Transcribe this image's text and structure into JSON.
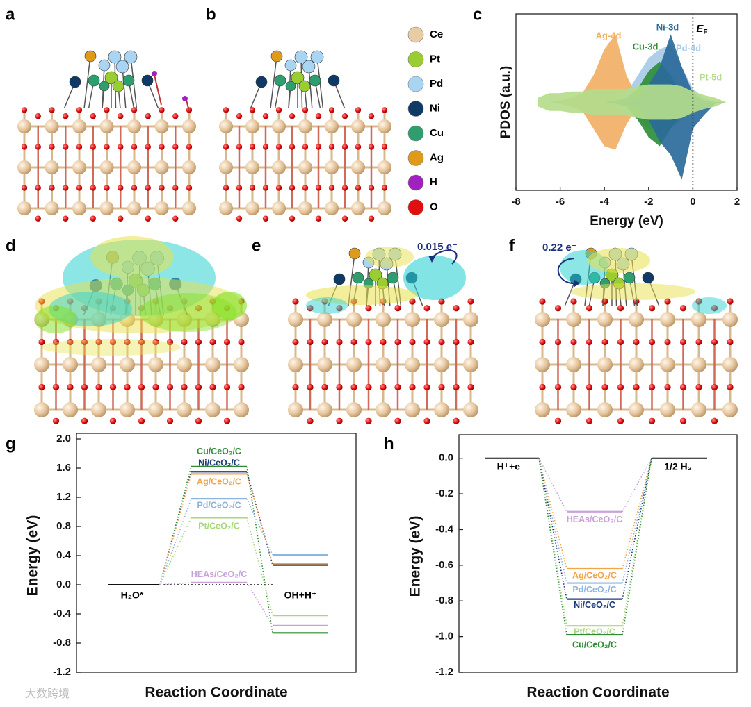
{
  "panel_labels": [
    "a",
    "b",
    "c",
    "d",
    "e",
    "f",
    "g",
    "h"
  ],
  "atom_legend": [
    {
      "name": "Ce",
      "color": "#e9cba4"
    },
    {
      "name": "Pt",
      "color": "#9acd32"
    },
    {
      "name": "Pd",
      "color": "#a9d5f2"
    },
    {
      "name": "Ni",
      "color": "#0f3a66"
    },
    {
      "name": "Cu",
      "color": "#2e9e6e"
    },
    {
      "name": "Ag",
      "color": "#e09a1a"
    },
    {
      "name": "H",
      "color": "#a020c0"
    },
    {
      "name": "O",
      "color": "#e01010"
    }
  ],
  "charge_transfer": [
    "0.015 e⁻",
    "0.22 e⁻"
  ],
  "watermark": "大数跨境",
  "chart_data": [
    {
      "type": "area",
      "xlabel": "Energy (eV)",
      "ylabel": "PDOS (a.u.)",
      "xlim": [
        -8,
        2
      ],
      "xticks": [
        -8,
        -6,
        -4,
        -2,
        0,
        2
      ],
      "ylim": [
        -1,
        1
      ],
      "fermi_level": 0,
      "fermi_label": {
        "text": "E",
        "sub": "F"
      },
      "x": [
        -7,
        -6.5,
        -6,
        -5.5,
        -5,
        -4.5,
        -4,
        -3.5,
        -3,
        -2.5,
        -2,
        -1.5,
        -1,
        -0.5,
        0,
        0.5,
        1,
        1.5
      ],
      "series": [
        {
          "name": "Ag-4d",
          "color": "#f2b066",
          "values": [
            0,
            0,
            0.02,
            0.05,
            0.1,
            0.3,
            0.6,
            0.77,
            0.3,
            0.05,
            0.02,
            0,
            0,
            0,
            0,
            0,
            0,
            0
          ],
          "values_down": [
            0,
            0,
            -0.02,
            -0.05,
            -0.1,
            -0.3,
            -0.5,
            -0.54,
            -0.25,
            -0.05,
            -0.02,
            0,
            0,
            0,
            0,
            0,
            0,
            0
          ]
        },
        {
          "name": "Pd-4d",
          "color": "#a8cbe6",
          "values": [
            0,
            0,
            0,
            0,
            0,
            0,
            0,
            0.02,
            0.1,
            0.3,
            0.5,
            0.6,
            0.65,
            0.4,
            0.15,
            0.05,
            0,
            0
          ],
          "values_down": [
            0,
            0,
            0,
            0,
            0,
            0,
            0,
            -0.02,
            -0.1,
            -0.2,
            -0.3,
            -0.35,
            -0.3,
            -0.2,
            -0.1,
            -0.02,
            0,
            0
          ]
        },
        {
          "name": "Cu-3d",
          "color": "#2f8f3a",
          "values": [
            0,
            0,
            0,
            0,
            0,
            0,
            0,
            0.02,
            0.05,
            0.15,
            0.35,
            0.46,
            0.3,
            0.1,
            0.05,
            0,
            0,
            0
          ],
          "values_down": [
            0,
            0,
            0,
            0,
            0,
            0,
            0,
            -0.02,
            -0.05,
            -0.2,
            -0.4,
            -0.5,
            -0.3,
            -0.15,
            -0.05,
            0,
            0,
            0
          ]
        },
        {
          "name": "Ni-3d",
          "color": "#2b6a9a",
          "values": [
            0,
            0,
            0,
            0,
            0,
            0,
            0,
            0,
            0.02,
            0.05,
            0.2,
            0.4,
            0.77,
            0.4,
            0.1,
            0.02,
            0,
            0
          ],
          "values_down": [
            0,
            0,
            0,
            0,
            0,
            0,
            0,
            0,
            -0.02,
            -0.05,
            -0.2,
            -0.45,
            -0.6,
            -0.88,
            -0.3,
            -0.15,
            -0.02,
            0
          ]
        },
        {
          "name": "Pt-5d",
          "color": "#b4dc8c",
          "values": [
            0.05,
            0.1,
            0.1,
            0.12,
            0.12,
            0.15,
            0.15,
            0.15,
            0.15,
            0.18,
            0.2,
            0.2,
            0.2,
            0.18,
            0.12,
            0.08,
            0.05,
            0
          ],
          "values_down": [
            -0.05,
            -0.1,
            -0.1,
            -0.12,
            -0.12,
            -0.15,
            -0.15,
            -0.15,
            -0.15,
            -0.18,
            -0.2,
            -0.2,
            -0.2,
            -0.18,
            -0.12,
            -0.08,
            -0.05,
            0
          ]
        }
      ]
    },
    {
      "type": "energy_diagram",
      "xlabel": "Reaction Coordinate",
      "ylabel": "Energy (eV)",
      "ylim": [
        -1.2,
        2.0
      ],
      "yticks": [
        -1.2,
        -0.8,
        -0.4,
        {
          "value": 0,
          "label": "0.0"
        },
        0.4,
        0.8,
        1.2,
        1.6,
        {
          "value": 2,
          "label": "2.0"
        }
      ],
      "start": {
        "label": "H₂O*",
        "value": 0
      },
      "end_label": "OH+H⁺",
      "series": [
        {
          "name": "Cu/CeO₂/C",
          "color": "#2f8a34",
          "values": [
            1.62,
            -0.66
          ]
        },
        {
          "name": "Ni/CeO₂/C",
          "color": "#1c3a78",
          "values": [
            1.55,
            0.27
          ]
        },
        {
          "name": "Ag/CeO₂/C",
          "color": "#f0a54a",
          "values": [
            1.52,
            0.29
          ]
        },
        {
          "name": "Pd/CeO₂/C",
          "color": "#8fb4e0",
          "values": [
            1.18,
            0.41
          ]
        },
        {
          "name": "Pt/CeO₂/C",
          "color": "#a8d87a",
          "values": [
            0.92,
            -0.42
          ]
        },
        {
          "name": "HEAs/CeO₂/C",
          "color": "#c9a0d8",
          "values": [
            0.03,
            -0.56
          ]
        }
      ]
    },
    {
      "type": "energy_diagram",
      "xlabel": "Reaction Coordinate",
      "ylabel": "Energy (eV)",
      "ylim": [
        -1.2,
        0.1
      ],
      "yticks": [
        -1.2,
        {
          "value": -1,
          "label": "-1.0"
        },
        -0.8,
        -0.6,
        -0.4,
        -0.2,
        {
          "value": 0,
          "label": "0.0"
        }
      ],
      "start": {
        "label": "H⁺+e⁻",
        "value": 0
      },
      "end": {
        "label": "1/2 H₂",
        "value": 0
      },
      "series": [
        {
          "name": "HEAs/CeO₂/C",
          "color": "#c9a0d8",
          "values": [
            -0.3
          ]
        },
        {
          "name": "Ag/CeO₂/C",
          "color": "#f0a54a",
          "values": [
            -0.62
          ]
        },
        {
          "name": "Pd/CeO₂/C",
          "color": "#8fb4e0",
          "values": [
            -0.7
          ]
        },
        {
          "name": "Ni/CeO₂/C",
          "color": "#1c3a78",
          "values": [
            -0.79
          ]
        },
        {
          "name": "Pt/CeO₂/C",
          "color": "#a8d87a",
          "values": [
            -0.94
          ]
        },
        {
          "name": "Cu/CeO₂/C",
          "color": "#2f8a34",
          "values": [
            -0.99
          ]
        }
      ]
    }
  ]
}
